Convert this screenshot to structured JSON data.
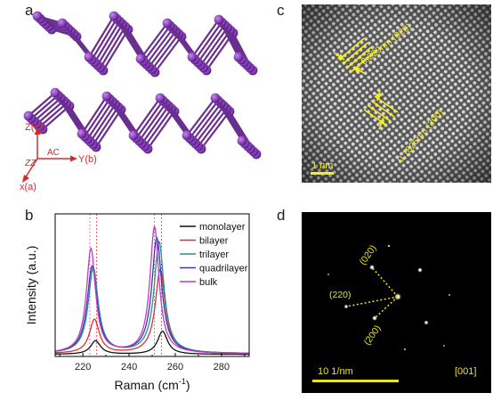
{
  "panel_labels": {
    "a": "a",
    "b": "b",
    "c": "c",
    "d": "d"
  },
  "panel_a": {
    "axes": {
      "z": "Z(c)",
      "zz": "ZZ",
      "ac": "AC",
      "y": "Y(b)",
      "x": "x(a)"
    },
    "colors": {
      "atom": "#8b3fc0",
      "bond": "#6a2f8e",
      "axis": "#d62a2a"
    }
  },
  "panel_c": {
    "label_top": "0.229nm (020)",
    "label_bottom": "0.1825nm (200)",
    "scale_bar": "1 nm",
    "colors": {
      "annotation": "#f5ef1c"
    }
  },
  "panel_d": {
    "spot_labels": {
      "s020": "(020)",
      "s220": "(220)",
      "s200": "(200)"
    },
    "scale_bar": "10 1/nm",
    "zone_axis": "[001]",
    "colors": {
      "annotation": "#e8e61a",
      "background": "#000000"
    }
  },
  "chart_data": {
    "type": "line",
    "xlabel": "Raman (cm",
    "xlabel_sup": "-1",
    "xlabel_close": ")",
    "ylabel": "Intensity (a.u.)",
    "xlim": [
      208,
      292
    ],
    "ylim": [
      0,
      1.05
    ],
    "x_ticks": [
      220,
      240,
      260,
      280
    ],
    "grid": false,
    "legend_position": "top-right",
    "reference_lines": [
      {
        "x": 223,
        "color": "#cc66cc"
      },
      {
        "x": 226,
        "color": "#dd4444"
      },
      {
        "x": 251,
        "color": "#cc66cc"
      },
      {
        "x": 254,
        "color": "#dd4444"
      }
    ],
    "series": [
      {
        "name": "monolayer",
        "color": "#111111",
        "peak1_x": 225.5,
        "peak1_h": 0.1,
        "peak2_x": 254.5,
        "peak2_h": 0.17,
        "width": 2.6,
        "baseline": 0.015
      },
      {
        "name": "bilayer",
        "color": "#e0302a",
        "peak1_x": 225.0,
        "peak1_h": 0.25,
        "peak2_x": 253.5,
        "peak2_h": 0.62,
        "width": 2.6,
        "baseline": 0.02
      },
      {
        "name": "trilayer",
        "color": "#2a8f9a",
        "peak1_x": 224.5,
        "peak1_h": 0.63,
        "peak2_x": 253.0,
        "peak2_h": 0.82,
        "width": 2.6,
        "baseline": 0.02
      },
      {
        "name": "quadrilayer",
        "color": "#3a3aa8",
        "peak1_x": 224.0,
        "peak1_h": 0.64,
        "peak2_x": 252.0,
        "peak2_h": 0.85,
        "width": 2.6,
        "baseline": 0.02
      },
      {
        "name": "bulk",
        "color": "#c43ac8",
        "peak1_x": 223.5,
        "peak1_h": 0.77,
        "peak2_x": 251.0,
        "peak2_h": 0.93,
        "width": 2.4,
        "baseline": 0.02
      }
    ]
  }
}
